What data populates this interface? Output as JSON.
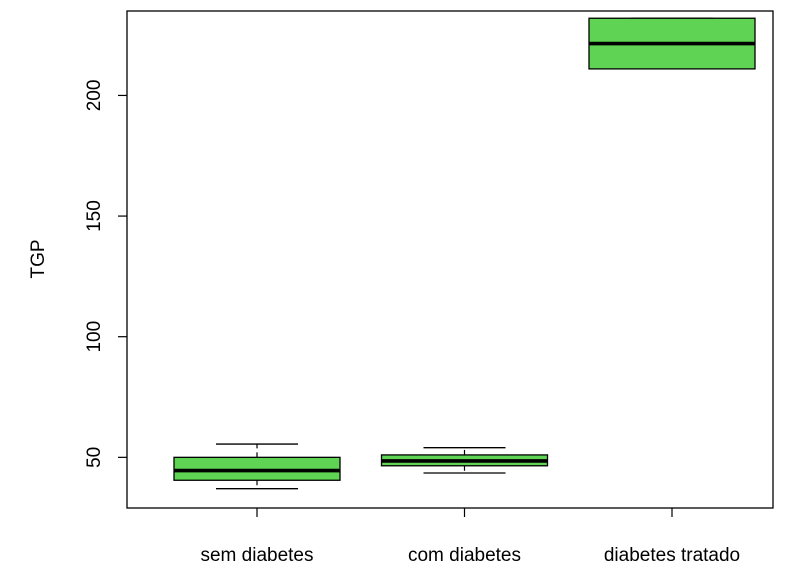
{
  "chart_data": {
    "type": "boxplot",
    "title": "",
    "xlabel": "",
    "ylabel": "TGP",
    "ylim": [
      29,
      235
    ],
    "yticks": [
      50,
      100,
      150,
      200
    ],
    "grid": false,
    "box_color": "#5fd353",
    "categories": [
      "sem diabetes",
      "com diabetes",
      "diabetes tratado"
    ],
    "boxes": [
      {
        "category": "sem diabetes",
        "whisker_low": 37,
        "q1": 40.5,
        "median": 44.5,
        "q3": 50,
        "whisker_high": 55.5
      },
      {
        "category": "com diabetes",
        "whisker_low": 43.5,
        "q1": 46.5,
        "median": 48.5,
        "q3": 51,
        "whisker_high": 54
      },
      {
        "category": "diabetes tratado",
        "whisker_low": 211,
        "q1": 211,
        "median": 221.5,
        "q3": 232,
        "whisker_high": 232
      }
    ]
  }
}
